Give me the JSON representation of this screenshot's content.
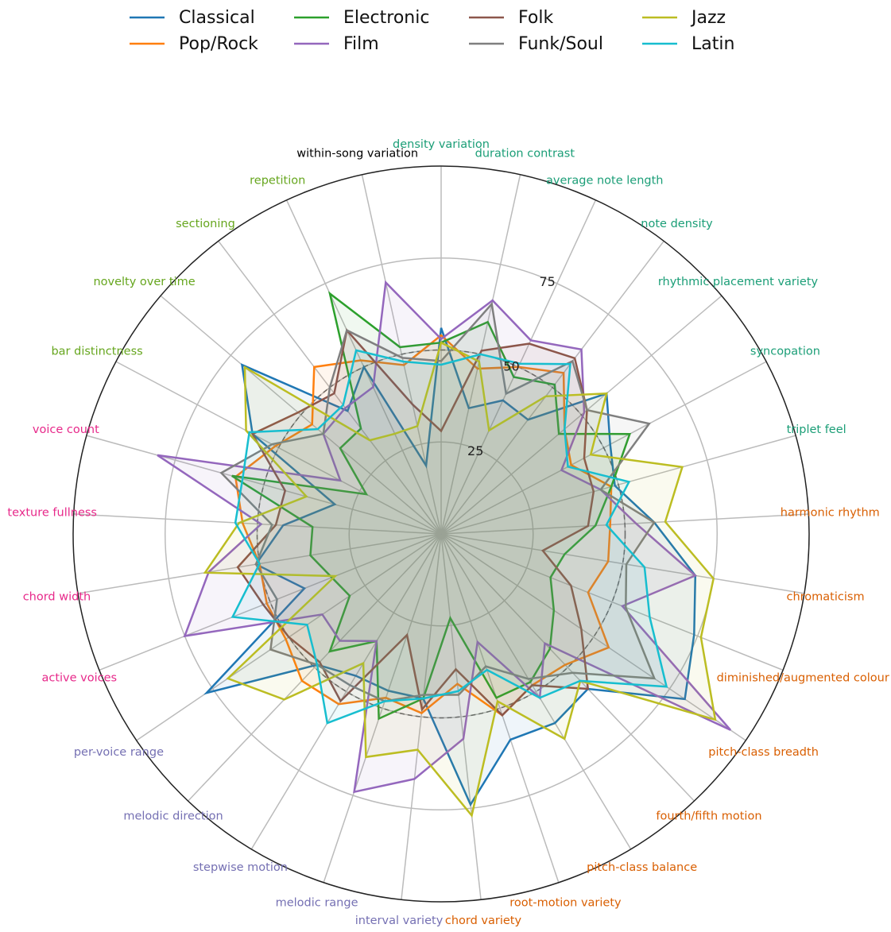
{
  "chart_data": {
    "type": "radar",
    "categories": [
      "density variation",
      "duration contrast",
      "average note length",
      "note density",
      "rhythmic placement variety",
      "syncopation",
      "triplet feel",
      "harmonic rhythm",
      "chromaticism",
      "diminished/augmented colour",
      "pitch-class breadth",
      "fourth/fifth motion",
      "pitch-class balance",
      "root-motion variety",
      "chord variety",
      "interval variety",
      "melodic range",
      "stepwise motion",
      "melodic direction",
      "per-voice range",
      "active voices",
      "chord width",
      "texture fullness",
      "voice count",
      "bar distinctness",
      "novelty over time",
      "sectioning",
      "repetition",
      "within-song variation"
    ],
    "category_colors": [
      "#1b9e77",
      "#1b9e77",
      "#1b9e77",
      "#1b9e77",
      "#1b9e77",
      "#1b9e77",
      "#1b9e77",
      "#d95f02",
      "#d95f02",
      "#d95f02",
      "#d95f02",
      "#d95f02",
      "#d95f02",
      "#d95f02",
      "#d95f02",
      "#7570b3",
      "#7570b3",
      "#7570b3",
      "#7570b3",
      "#7570b3",
      "#e7298a",
      "#e7298a",
      "#e7298a",
      "#e7298a",
      "#66a61e",
      "#66a61e",
      "#66a61e",
      "#66a61e",
      "#000000"
    ],
    "series": [
      {
        "name": "Classical",
        "color": "#1f77b4",
        "values": [
          56,
          35,
          40,
          39,
          59,
          52,
          49,
          58,
          70,
          74,
          80,
          58,
          60,
          59,
          74,
          45,
          45,
          45,
          49,
          77,
          40,
          51,
          43,
          30,
          58,
          71,
          42,
          50,
          19
        ]
      },
      {
        "name": "Pop/Rock",
        "color": "#ff7f0e",
        "values": [
          54,
          46,
          50,
          55,
          44,
          40,
          48,
          46,
          46,
          43,
          55,
          49,
          48,
          52,
          41,
          49,
          47,
          54,
          55,
          51,
          51,
          50,
          54,
          58,
          51,
          46,
          57,
          52,
          47
        ]
      },
      {
        "name": "Electronic",
        "color": "#2ca02c",
        "values": [
          52,
          59,
          47,
          51,
          42,
          58,
          48,
          42,
          34,
          32,
          37,
          43,
          47,
          47,
          23,
          45,
          53,
          34,
          44,
          30,
          32,
          36,
          35,
          59,
          23,
          36,
          36,
          72,
          52
        ]
      },
      {
        "name": "Film",
        "color": "#9467bd",
        "values": [
          53,
          65,
          58,
          63,
          51,
          37,
          45,
          53,
          70,
          53,
          95,
          41,
          52,
          31,
          56,
          67,
          74,
          34,
          40,
          39,
          75,
          64,
          49,
          80,
          31,
          42,
          43,
          44,
          70
        ]
      },
      {
        "name": "Folk",
        "color": "#8c564b",
        "values": [
          28,
          51,
          57,
          60,
          52,
          44,
          43,
          40,
          28,
          38,
          46,
          58,
          48,
          52,
          37,
          48,
          29,
          53,
          48,
          50,
          52,
          56,
          45,
          44,
          58,
          51,
          48,
          61,
          36
        ]
      },
      {
        "name": "Funk/Soul",
        "color": "#7f7f7f",
        "values": [
          47,
          64,
          42,
          59,
          52,
          64,
          45,
          58,
          51,
          54,
          70,
          52,
          46,
          38,
          44,
          44,
          48,
          48,
          49,
          56,
          48,
          51,
          46,
          62,
          52,
          42,
          50,
          61,
          49
        ]
      },
      {
        "name": "Jazz",
        "color": "#bcbd22",
        "values": [
          52,
          48,
          31,
          47,
          59,
          46,
          68,
          61,
          75,
          76,
          90,
          55,
          65,
          48,
          77,
          59,
          64,
          41,
          62,
          70,
          31,
          65,
          55,
          38,
          60,
          70,
          32,
          30,
          30
        ]
      },
      {
        "name": "Latin",
        "color": "#17becf",
        "values": [
          46,
          50,
          51,
          58,
          44,
          39,
          53,
          45,
          56,
          61,
          74,
          55,
          52,
          39,
          43,
          45,
          48,
          60,
          49,
          44,
          61,
          50,
          56,
          56,
          59,
          44,
          44,
          55,
          48
        ]
      }
    ],
    "ylim": [
      0,
      100
    ],
    "yticks": [
      25,
      50,
      75
    ],
    "reference_line": 50,
    "grid": true,
    "legend": "top"
  }
}
